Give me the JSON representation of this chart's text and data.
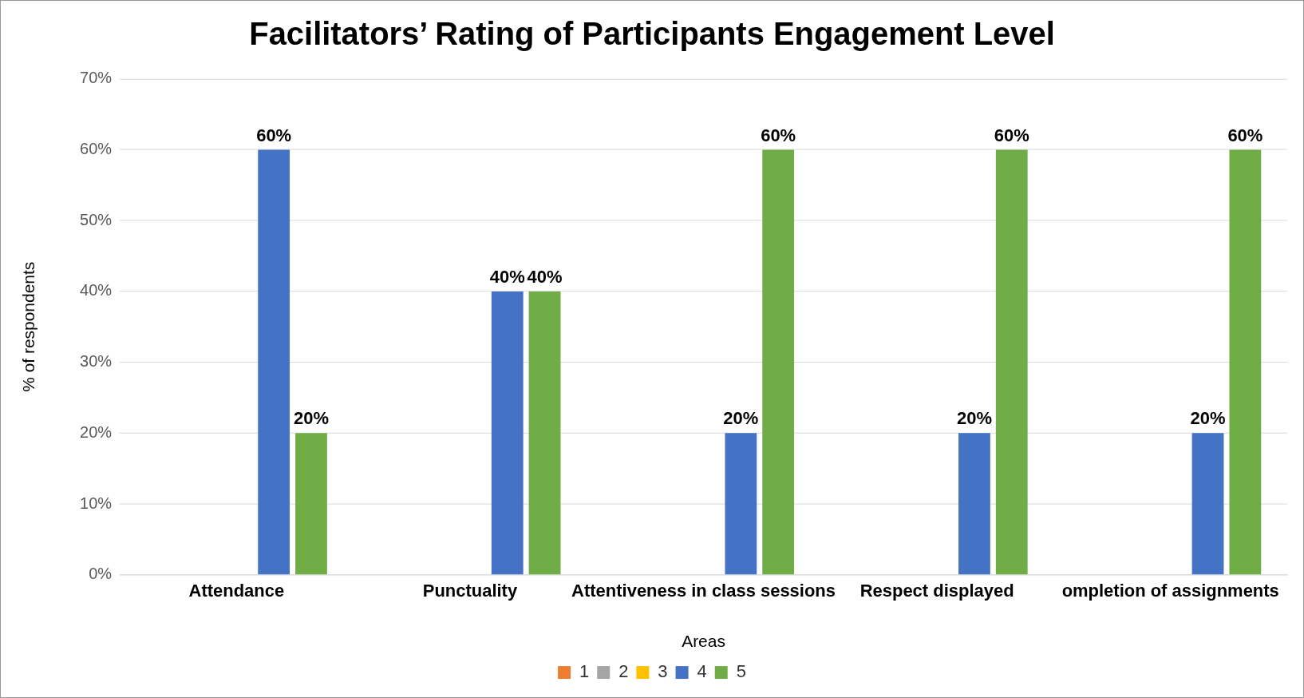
{
  "chart_data": {
    "type": "bar",
    "title": "Facilitators’ Rating of Participants Engagement Level",
    "xlabel": "Areas",
    "ylabel": "% of respondents",
    "categories": [
      "Attendance",
      "Punctuality",
      "Attentiveness in class sessions",
      "Respect displayed",
      "ompletion of assignments"
    ],
    "series": [
      {
        "name": "1",
        "color": "#ed7d31",
        "values": [
          0,
          0,
          0,
          0,
          0
        ],
        "value_labels": [
          null,
          null,
          null,
          null,
          null
        ]
      },
      {
        "name": "2",
        "color": "#a5a5a5",
        "values": [
          0,
          0,
          0,
          0,
          0
        ],
        "value_labels": [
          null,
          null,
          null,
          null,
          null
        ]
      },
      {
        "name": "3",
        "color": "#ffc000",
        "values": [
          0,
          0,
          0,
          0,
          0
        ],
        "value_labels": [
          null,
          null,
          null,
          null,
          null
        ]
      },
      {
        "name": "4",
        "color": "#4472c4",
        "values": [
          60,
          40,
          20,
          20,
          20
        ],
        "value_labels": [
          "60%",
          "40%",
          "20%",
          "20%",
          "20%"
        ]
      },
      {
        "name": "5",
        "color": "#70ad47",
        "values": [
          20,
          40,
          60,
          60,
          60
        ],
        "value_labels": [
          "20%",
          "40%",
          "60%",
          "60%",
          "60%"
        ]
      }
    ],
    "ylim": [
      0,
      70
    ],
    "yticks": [
      {
        "value": 0,
        "label": "0%"
      },
      {
        "value": 10,
        "label": "10%"
      },
      {
        "value": 20,
        "label": "20%"
      },
      {
        "value": 30,
        "label": "30%"
      },
      {
        "value": 40,
        "label": "40%"
      },
      {
        "value": 50,
        "label": "50%"
      },
      {
        "value": 60,
        "label": "60%"
      },
      {
        "value": 70,
        "label": "70%"
      }
    ],
    "grid": "y",
    "legend": "bottom"
  }
}
